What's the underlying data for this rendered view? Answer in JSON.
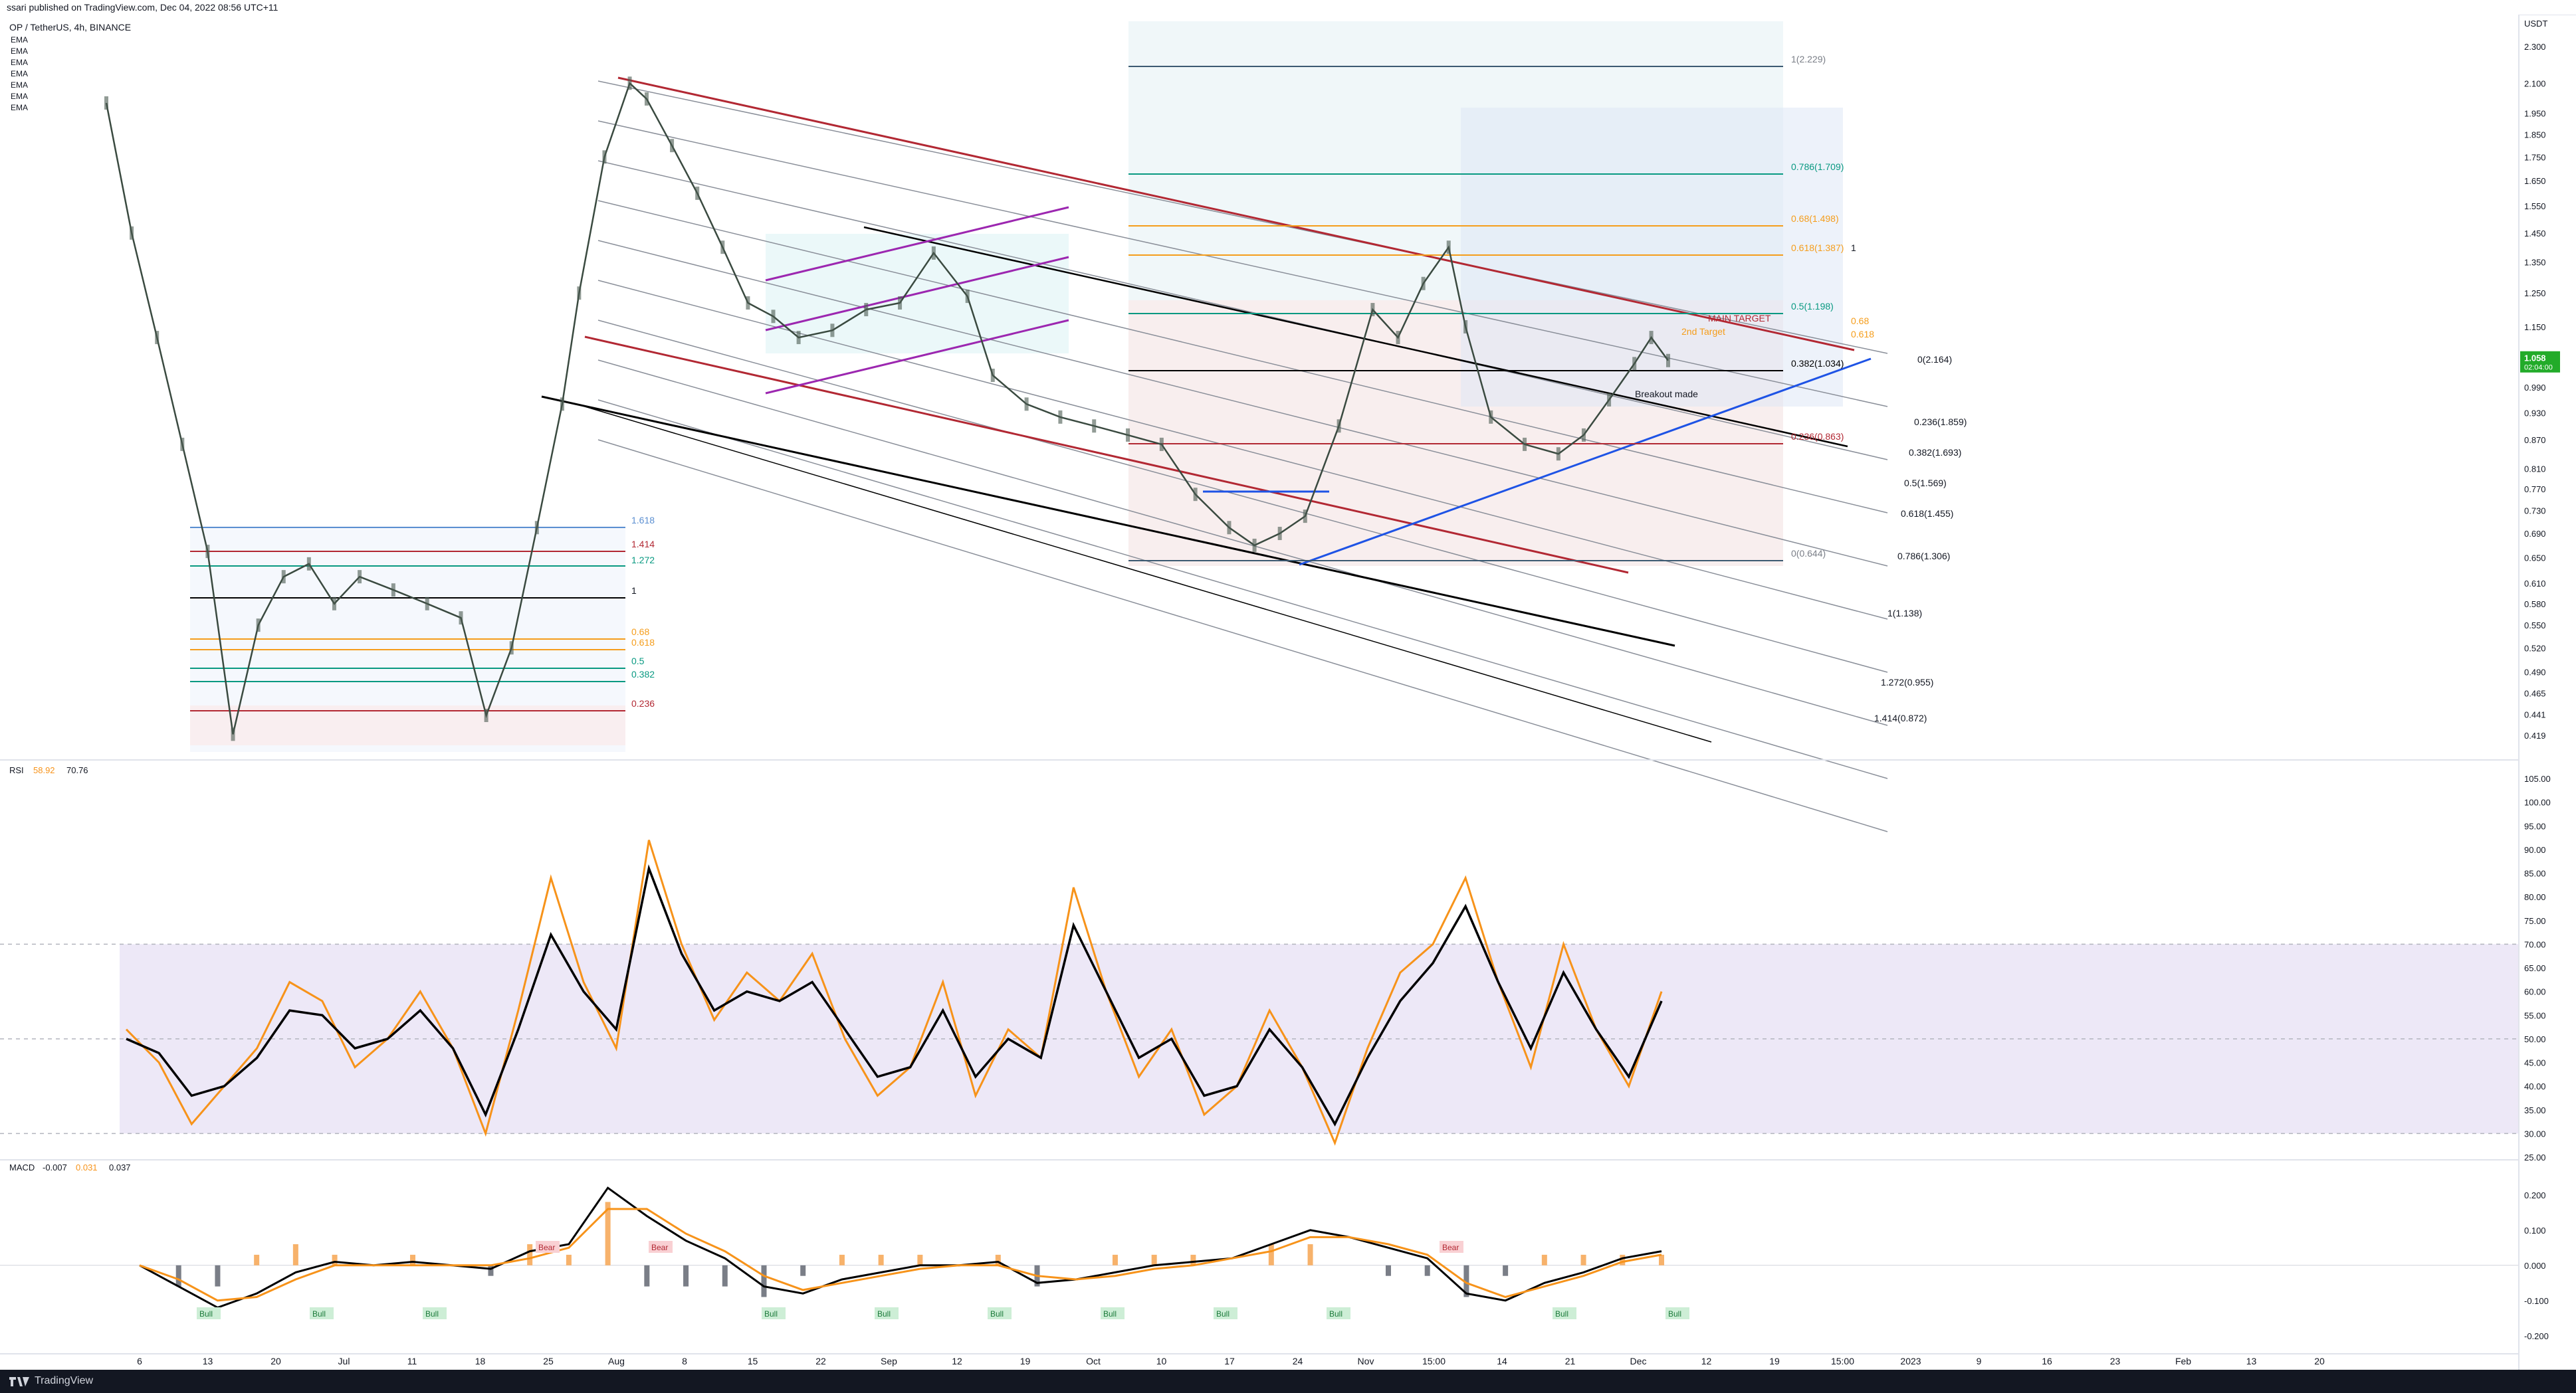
{
  "header": {
    "published": "ssari published on TradingView.com, Dec 04, 2022 08:56 UTC+11"
  },
  "legend": {
    "symbol": "OP / TetherUS, 4h, BINANCE",
    "ema_labels": [
      "EMA",
      "EMA",
      "EMA",
      "EMA",
      "EMA",
      "EMA",
      "EMA"
    ]
  },
  "footer": {
    "brand": "TradingView"
  },
  "colors": {
    "price_line": "#3a4a40",
    "rsi": "#f7931a",
    "rsi_ma": "#000000",
    "macd": "#000000",
    "signal": "#f7931a",
    "channel_red": "#b22833",
    "channel_purple": "#9c27b0",
    "trend_blue": "#1e53e5",
    "fib_green": "#089981",
    "fib_orange": "#f59d1b",
    "price_badge": "#22ab29"
  },
  "chart_data": [
    {
      "type": "line",
      "title": "OP / TetherUS, 4h, BINANCE",
      "ylabel": "USDT",
      "yscale": "log",
      "ylim": [
        0.41,
        2.33
      ],
      "y_ticks": [
        "2.300",
        "2.100",
        "1.950",
        "1.850",
        "1.750",
        "1.650",
        "1.550",
        "1.450",
        "1.350",
        "1.250",
        "1.150",
        "1.050",
        "0.990",
        "0.930",
        "0.870",
        "0.810",
        "0.770",
        "0.730",
        "0.690",
        "0.650",
        "0.610",
        "0.580",
        "0.550",
        "0.520",
        "0.490",
        "0.465",
        "0.441",
        "0.419"
      ],
      "x_ticks": [
        "6",
        "13",
        "20",
        "Jul",
        "11",
        "18",
        "25",
        "Aug",
        "8",
        "15",
        "22",
        "Sep",
        "12",
        "19",
        "Oct",
        "10",
        "17",
        "24",
        "Nov",
        "15:00",
        "14",
        "21",
        "Dec",
        "12",
        "19",
        "15:00",
        "2023",
        "9",
        "16",
        "23",
        "Feb",
        "13",
        "20"
      ],
      "last_price": "1.058",
      "countdown": "02:04:00",
      "series": [
        {
          "x": [
            "Jun 01",
            "Jun 04",
            "Jun 07",
            "Jun 10",
            "Jun 13",
            "Jun 16",
            "Jun 19",
            "Jun 22",
            "Jun 25",
            "Jun 28",
            "Jul 01",
            "Jul 05",
            "Jul 09",
            "Jul 13",
            "Jul 16",
            "Jul 19",
            "Jul 22",
            "Jul 25",
            "Jul 27",
            "Jul 30",
            "Aug 02",
            "Aug 04",
            "Aug 07",
            "Aug 10",
            "Aug 13",
            "Aug 16",
            "Aug 19",
            "Aug 22",
            "Aug 26",
            "Aug 30",
            "Sep 03",
            "Sep 07",
            "Sep 11",
            "Sep 14",
            "Sep 18",
            "Sep 22",
            "Sep 26",
            "Sep 30",
            "Oct 04",
            "Oct 08",
            "Oct 12",
            "Oct 15",
            "Oct 18",
            "Oct 21",
            "Oct 25",
            "Oct 29",
            "Nov 01",
            "Nov 04",
            "Nov 07",
            "Nov 09",
            "Nov 12",
            "Nov 16",
            "Nov 20",
            "Nov 23",
            "Nov 26",
            "Nov 29",
            "Dec 01",
            "Dec 03"
          ],
          "y": [
            2.0,
            1.45,
            1.12,
            0.86,
            0.66,
            0.42,
            0.55,
            0.62,
            0.64,
            0.58,
            0.62,
            0.6,
            0.58,
            0.56,
            0.44,
            0.52,
            0.7,
            0.95,
            1.25,
            1.75,
            2.1,
            2.02,
            1.8,
            1.6,
            1.4,
            1.22,
            1.18,
            1.12,
            1.14,
            1.2,
            1.22,
            1.38,
            1.24,
            1.02,
            0.95,
            0.92,
            0.9,
            0.88,
            0.86,
            0.76,
            0.7,
            0.67,
            0.69,
            0.72,
            0.9,
            1.2,
            1.12,
            1.28,
            1.4,
            1.15,
            0.92,
            0.86,
            0.84,
            0.88,
            0.96,
            1.05,
            1.12,
            1.058
          ]
        }
      ],
      "annotations": [
        "1(2.229)",
        "0.786(1.709)",
        "0.68(1.498)",
        "0.618(1.387)",
        "1",
        "0.5(1.198)",
        "0.382(1.034)",
        "0.236(0.863)",
        "0(0.644)",
        "0.68",
        "0.618",
        "MAIN TARGET",
        "2nd Target",
        "0(2.164)",
        "0.236(1.859)",
        "0.382(1.693)",
        "0.5(1.569)",
        "0.618(1.455)",
        "0.786(1.306)",
        "1(1.138)",
        "1.272(0.955)",
        "1.414(0.872)",
        "1.618",
        "1.414",
        "1.272",
        "1",
        "0.68",
        "0.618",
        "0.5",
        "0.382",
        "0.236",
        "Breakout made"
      ]
    },
    {
      "type": "line",
      "title": "RSI",
      "legend_values": [
        "58.92",
        "70.76"
      ],
      "ylim": [
        25,
        105
      ],
      "y_ticks": [
        "105.00",
        "100.00",
        "95.00",
        "90.00",
        "85.00",
        "80.00",
        "75.00",
        "70.00",
        "65.00",
        "60.00",
        "55.00",
        "50.00",
        "45.00",
        "40.00",
        "35.00",
        "30.00",
        "25.00"
      ],
      "series": [
        {
          "name": "RSI",
          "x": [
            0,
            1,
            2,
            3,
            4,
            5,
            6,
            7,
            8,
            9,
            10,
            11,
            12,
            13,
            14,
            15,
            16,
            17,
            18,
            19,
            20,
            21,
            22,
            23,
            24,
            25,
            26,
            27,
            28,
            29,
            30,
            31,
            32,
            33,
            34,
            35,
            36,
            37,
            38,
            39,
            40,
            41,
            42,
            43,
            44,
            45,
            46,
            47
          ],
          "y": [
            52,
            45,
            32,
            40,
            48,
            62,
            58,
            44,
            50,
            60,
            48,
            30,
            56,
            84,
            62,
            48,
            92,
            70,
            54,
            64,
            58,
            68,
            50,
            38,
            44,
            62,
            38,
            52,
            46,
            82,
            60,
            42,
            52,
            34,
            40,
            56,
            44,
            28,
            48,
            64,
            70,
            84,
            62,
            44,
            70,
            52,
            40,
            60
          ]
        },
        {
          "name": "MA",
          "x": [
            0,
            1,
            2,
            3,
            4,
            5,
            6,
            7,
            8,
            9,
            10,
            11,
            12,
            13,
            14,
            15,
            16,
            17,
            18,
            19,
            20,
            21,
            22,
            23,
            24,
            25,
            26,
            27,
            28,
            29,
            30,
            31,
            32,
            33,
            34,
            35,
            36,
            37,
            38,
            39,
            40,
            41,
            42,
            43,
            44,
            45,
            46,
            47
          ],
          "y": [
            50,
            47,
            38,
            40,
            46,
            56,
            55,
            48,
            50,
            56,
            48,
            34,
            52,
            72,
            60,
            52,
            86,
            68,
            56,
            60,
            58,
            62,
            52,
            42,
            44,
            56,
            42,
            50,
            46,
            74,
            60,
            46,
            50,
            38,
            40,
            52,
            44,
            32,
            46,
            58,
            66,
            78,
            62,
            48,
            64,
            52,
            42,
            58
          ]
        }
      ]
    },
    {
      "type": "line",
      "title": "MACD",
      "legend_values": [
        "-0.007",
        "0.031",
        "0.037"
      ],
      "ylim": [
        -0.24,
        0.26
      ],
      "y_ticks": [
        "0.200",
        "0.100",
        "0.000",
        "-0.100",
        "-0.200"
      ],
      "divergence_labels": [
        "Bull",
        "Bull",
        "Bull",
        "Bear",
        "Bear",
        "Bull",
        "Bull",
        "Bull",
        "Bull",
        "Bull",
        "Bull",
        "Bear",
        "Bull",
        "Bull"
      ],
      "series": [
        {
          "name": "MACD",
          "x": [
            0,
            1,
            2,
            3,
            4,
            5,
            6,
            7,
            8,
            9,
            10,
            11,
            12,
            13,
            14,
            15,
            16,
            17,
            18,
            19,
            20,
            21,
            22,
            23,
            24,
            25,
            26,
            27,
            28,
            29,
            30,
            31,
            32,
            33,
            34,
            35,
            36,
            37,
            38,
            39
          ],
          "y": [
            0.0,
            -0.06,
            -0.12,
            -0.08,
            -0.02,
            0.01,
            0.0,
            0.01,
            0.0,
            -0.01,
            0.04,
            0.06,
            0.22,
            0.14,
            0.07,
            0.02,
            -0.06,
            -0.08,
            -0.04,
            -0.02,
            0.0,
            0.0,
            0.01,
            -0.05,
            -0.04,
            -0.02,
            0.0,
            0.01,
            0.02,
            0.06,
            0.1,
            0.08,
            0.05,
            0.02,
            -0.08,
            -0.1,
            -0.05,
            -0.02,
            0.02,
            0.04
          ]
        },
        {
          "name": "Signal",
          "x": [
            0,
            1,
            2,
            3,
            4,
            5,
            6,
            7,
            8,
            9,
            10,
            11,
            12,
            13,
            14,
            15,
            16,
            17,
            18,
            19,
            20,
            21,
            22,
            23,
            24,
            25,
            26,
            27,
            28,
            29,
            30,
            31,
            32,
            33,
            34,
            35,
            36,
            37,
            38,
            39
          ],
          "y": [
            0.0,
            -0.04,
            -0.1,
            -0.09,
            -0.04,
            0.0,
            0.0,
            0.0,
            0.0,
            0.0,
            0.02,
            0.05,
            0.16,
            0.16,
            0.09,
            0.04,
            -0.03,
            -0.07,
            -0.05,
            -0.03,
            -0.01,
            0.0,
            0.0,
            -0.03,
            -0.04,
            -0.03,
            -0.01,
            0.0,
            0.02,
            0.04,
            0.08,
            0.08,
            0.06,
            0.03,
            -0.05,
            -0.09,
            -0.06,
            -0.03,
            0.01,
            0.03
          ]
        }
      ]
    }
  ]
}
